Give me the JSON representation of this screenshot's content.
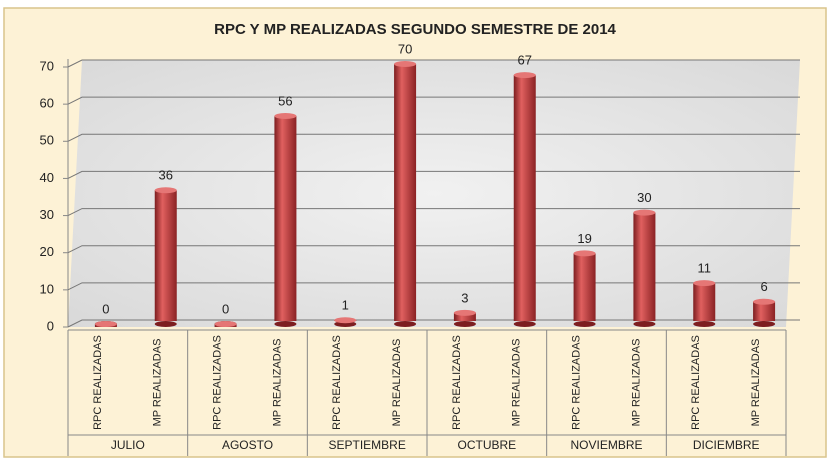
{
  "chart_data": {
    "type": "bar",
    "title": "RPC Y MP REALIZADAS  SEGUNDO SEMESTRE DE 2014",
    "categories": [
      "RPC REALIZADAS",
      "MP REALIZADAS",
      "RPC REALIZADAS",
      "MP REALIZADAS",
      "RPC REALIZADAS",
      "MP REALIZADAS",
      "RPC REALIZADAS",
      "MP REALIZADAS",
      "RPC REALIZADAS",
      "MP REALIZADAS",
      "RPC REALIZADAS",
      "MP REALIZADAS"
    ],
    "groups": [
      "JULIO",
      "AGOSTO",
      "SEPTIEMBRE",
      "OCTUBRE",
      "NOVIEMBRE",
      "DICIEMBRE"
    ],
    "values": [
      0,
      36,
      0,
      56,
      1,
      70,
      3,
      67,
      19,
      30,
      11,
      6
    ],
    "color": "#c0393b",
    "ylim": [
      0,
      70
    ],
    "yticks": [
      0,
      10,
      20,
      30,
      40,
      50,
      60,
      70
    ],
    "grid": true
  }
}
